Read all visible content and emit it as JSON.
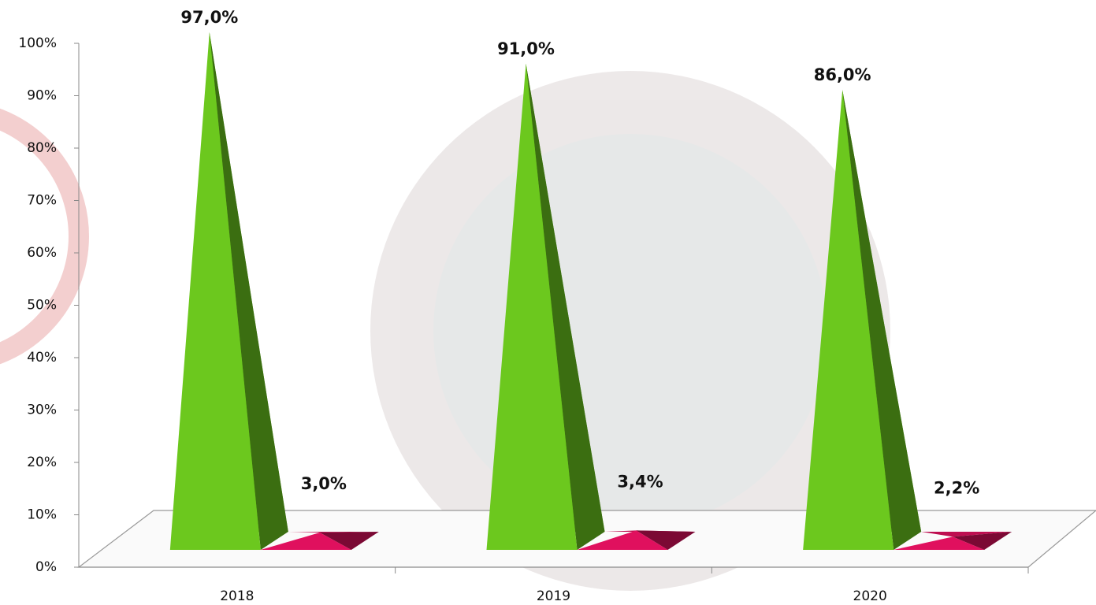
{
  "chart_data": {
    "type": "pyramid3d",
    "categories": [
      "2018",
      "2019",
      "2020"
    ],
    "series": [
      {
        "color": "#6cc81e",
        "values": [
          97,
          91,
          86
        ],
        "value_labels": [
          "97,0%",
          "91,0%",
          "86,0%"
        ]
      },
      {
        "color": "#e0105e",
        "values": [
          3,
          3.4,
          2.2
        ],
        "value_labels": [
          "3,0%",
          "3,4%",
          "2,2%"
        ]
      }
    ],
    "ylim": [
      0,
      100
    ],
    "yticks": [
      {
        "value": 0,
        "label": "0%"
      },
      {
        "value": 10,
        "label": "10%"
      },
      {
        "value": 20,
        "label": "20%"
      },
      {
        "value": 30,
        "label": "30%"
      },
      {
        "value": 40,
        "label": "40%"
      },
      {
        "value": 50,
        "label": "50%"
      },
      {
        "value": 60,
        "label": "60%"
      },
      {
        "value": 70,
        "label": "70%"
      },
      {
        "value": 80,
        "label": "80%"
      },
      {
        "value": 90,
        "label": "90%"
      },
      {
        "value": 100,
        "label": "100%"
      }
    ]
  }
}
